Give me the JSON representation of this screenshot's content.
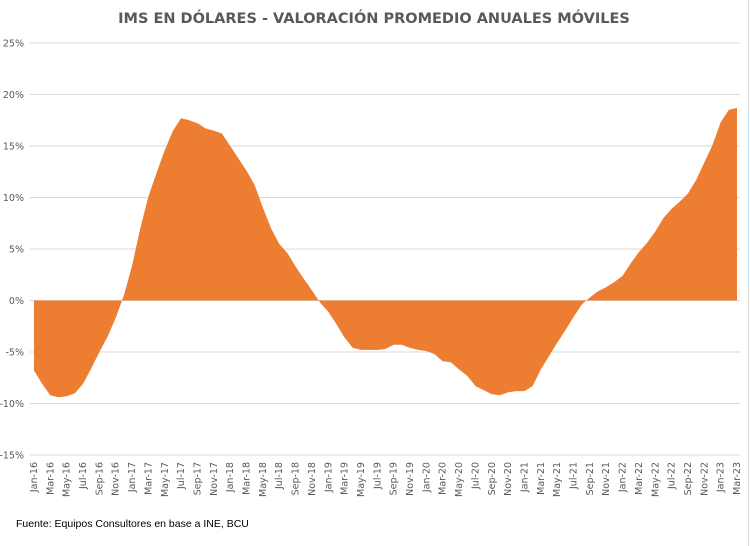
{
  "chart_data": {
    "type": "area",
    "title": "IMS EN DÓLARES - VALORACIÓN PROMEDIO ANUALES MÓVILES",
    "xlabel": "",
    "ylabel": "",
    "ylim": [
      -15,
      25
    ],
    "yticks": [
      25,
      20,
      15,
      10,
      5,
      0,
      -5,
      -10,
      -15
    ],
    "ytick_labels": [
      "25%",
      "20%",
      "15%",
      "10%",
      "5%",
      "0%",
      "-5%",
      "-10%",
      "-15%"
    ],
    "grid": true,
    "color": "#ED7D31",
    "x": [
      "Jan-16",
      "Feb-16",
      "Mar-16",
      "Apr-16",
      "May-16",
      "Jun-16",
      "Jul-16",
      "Aug-16",
      "Sep-16",
      "Oct-16",
      "Nov-16",
      "Dec-16",
      "Jan-17",
      "Feb-17",
      "Mar-17",
      "Apr-17",
      "May-17",
      "Jun-17",
      "Jul-17",
      "Aug-17",
      "Sep-17",
      "Oct-17",
      "Nov-17",
      "Dec-17",
      "Jan-18",
      "Feb-18",
      "Mar-18",
      "Apr-18",
      "May-18",
      "Jun-18",
      "Jul-18",
      "Aug-18",
      "Sep-18",
      "Oct-18",
      "Nov-18",
      "Dec-18",
      "Jan-19",
      "Feb-19",
      "Mar-19",
      "Apr-19",
      "May-19",
      "Jun-19",
      "Jul-19",
      "Aug-19",
      "Sep-19",
      "Oct-19",
      "Nov-19",
      "Dec-19",
      "Jan-20",
      "Feb-20",
      "Mar-20",
      "Apr-20",
      "May-20",
      "Jun-20",
      "Jul-20",
      "Aug-20",
      "Sep-20",
      "Oct-20",
      "Nov-20",
      "Dec-20",
      "Jan-21",
      "Feb-21",
      "Mar-21",
      "Apr-21",
      "May-21",
      "Jun-21",
      "Jul-21",
      "Aug-21",
      "Sep-21",
      "Oct-21",
      "Nov-21",
      "Dec-21",
      "Jan-22",
      "Feb-22",
      "Mar-22",
      "Apr-22",
      "May-22",
      "Jun-22",
      "Jul-22",
      "Aug-22",
      "Sep-22",
      "Oct-22",
      "Nov-22",
      "Dec-22",
      "Jan-23",
      "Feb-23",
      "Mar-23"
    ],
    "values": [
      -6.8,
      -8.1,
      -9.2,
      -9.4,
      -9.3,
      -9.0,
      -8.1,
      -6.6,
      -5.0,
      -3.5,
      -1.7,
      0.5,
      3.4,
      7.0,
      10.1,
      12.4,
      14.6,
      16.5,
      17.7,
      17.5,
      17.2,
      16.7,
      16.5,
      16.2,
      15.0,
      13.8,
      12.6,
      11.2,
      9.0,
      7.0,
      5.5,
      4.6,
      3.3,
      2.1,
      1.0,
      -0.2,
      -1.1,
      -2.3,
      -3.6,
      -4.6,
      -4.8,
      -4.8,
      -4.8,
      -4.7,
      -4.3,
      -4.3,
      -4.6,
      -4.8,
      -4.9,
      -5.2,
      -5.9,
      -6.0,
      -6.7,
      -7.3,
      -8.3,
      -8.7,
      -9.1,
      -9.2,
      -8.9,
      -8.8,
      -8.8,
      -8.3,
      -6.7,
      -5.4,
      -4.1,
      -2.9,
      -1.6,
      -0.4,
      0.3,
      0.9,
      1.3,
      1.8,
      2.4,
      3.6,
      4.7,
      5.6,
      6.7,
      8.0,
      8.9,
      9.6,
      10.4,
      11.7,
      13.4,
      15.1,
      17.3,
      18.5,
      18.7
    ],
    "xtick_every": 2
  },
  "source": "Fuente: Equipos Consultores en base a INE, BCU"
}
